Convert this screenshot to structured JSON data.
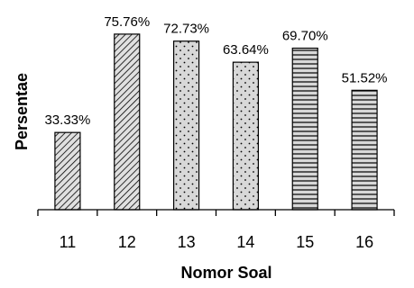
{
  "chart_data": {
    "type": "bar",
    "categories": [
      "11",
      "12",
      "13",
      "14",
      "15",
      "16"
    ],
    "values": [
      33.33,
      75.76,
      72.73,
      63.64,
      69.7,
      51.52
    ],
    "data_labels": [
      "33.33%",
      "75.76%",
      "72.73%",
      "63.64%",
      "69.70%",
      "51.52%"
    ],
    "patterns": [
      "diagonal",
      "diagonal",
      "dots",
      "dots",
      "horizontal",
      "horizontal"
    ],
    "xlabel": "Nomor Soal",
    "ylabel": "Persentae",
    "ylim": [
      0,
      80
    ],
    "grid": false,
    "bar_fill": "#d8d8d8",
    "bar_stroke": "#000000"
  }
}
